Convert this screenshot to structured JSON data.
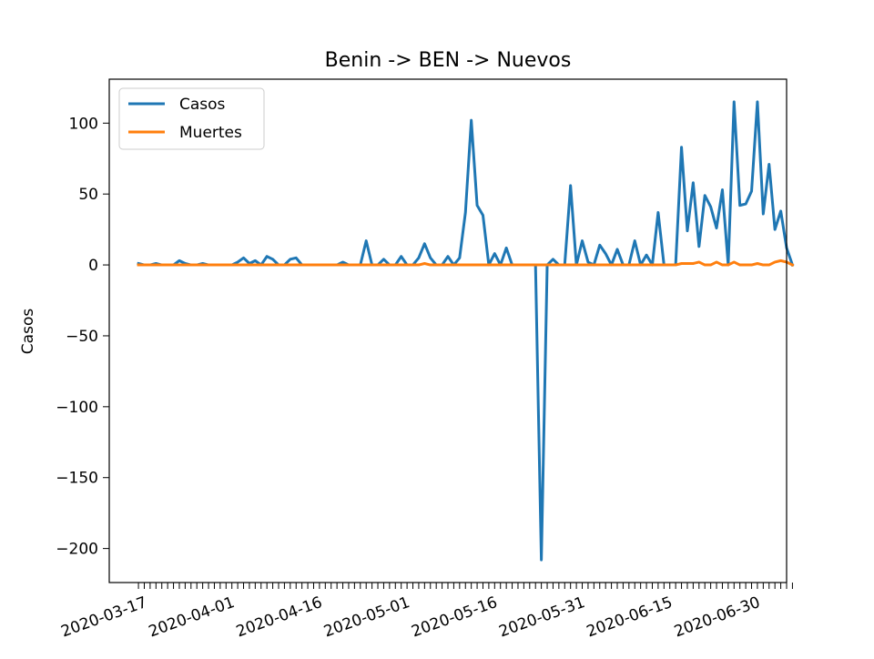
{
  "chart_data": {
    "type": "line",
    "title": "Benin -> BEN -> Nuevos",
    "xlabel": "",
    "ylabel": "Casos",
    "x_start": "2020-03-16",
    "x_end": "2020-06-30",
    "xlim": [
      "2020-03-11",
      "2020-07-05"
    ],
    "ylim": [
      -224,
      131
    ],
    "x_tick_labels": [
      "2020-03-17",
      "2020-04-01",
      "2020-04-16",
      "2020-05-01",
      "2020-05-16",
      "2020-05-31",
      "2020-06-15",
      "2020-06-30"
    ],
    "y_ticks": [
      100,
      50,
      0,
      -50,
      -100,
      -150,
      -200
    ],
    "y_tick_labels": [
      "100",
      "50",
      "0",
      "−50",
      "−100",
      "−150",
      "−200"
    ],
    "legend_position": "top-left",
    "grid": false,
    "series": [
      {
        "name": "Casos",
        "color": "#1f77b4",
        "values": [
          1,
          0,
          0,
          1,
          0,
          0,
          0,
          3,
          1,
          0,
          0,
          1,
          0,
          0,
          0,
          0,
          0,
          2,
          5,
          1,
          3,
          0,
          6,
          4,
          0,
          0,
          4,
          5,
          0,
          0,
          0,
          0,
          0,
          0,
          0,
          2,
          0,
          0,
          0,
          17,
          0,
          0,
          4,
          0,
          0,
          6,
          0,
          0,
          5,
          15,
          5,
          0,
          0,
          6,
          0,
          5,
          37,
          102,
          42,
          35,
          0,
          8,
          0,
          12,
          0,
          0,
          0,
          0,
          0,
          -208,
          0,
          4,
          0,
          0,
          56,
          0,
          17,
          2,
          0,
          14,
          8,
          0,
          11,
          0,
          0,
          17,
          0,
          7,
          0,
          37,
          0,
          0,
          0,
          83,
          24,
          58,
          13,
          49,
          41,
          26,
          53,
          0,
          115,
          42,
          43,
          52,
          115,
          36,
          71,
          25,
          38,
          12,
          0
        ]
      },
      {
        "name": "Muertes",
        "color": "#ff7f0e",
        "values": [
          0,
          0,
          0,
          0,
          0,
          0,
          0,
          0,
          0,
          0,
          0,
          0,
          0,
          0,
          0,
          0,
          0,
          0,
          0,
          0,
          0,
          0,
          0,
          0,
          0,
          0,
          0,
          0,
          0,
          0,
          0,
          0,
          0,
          0,
          0,
          0,
          0,
          0,
          0,
          0,
          0,
          0,
          0,
          0,
          0,
          0,
          0,
          0,
          0,
          1,
          0,
          0,
          0,
          0,
          0,
          0,
          0,
          0,
          0,
          0,
          0,
          0,
          0,
          0,
          0,
          0,
          0,
          0,
          0,
          0,
          0,
          0,
          0,
          0,
          0,
          0,
          0,
          0,
          0,
          0,
          0,
          0,
          0,
          0,
          0,
          0,
          0,
          0,
          0,
          0,
          0,
          0,
          0,
          1,
          1,
          1,
          2,
          0,
          0,
          2,
          0,
          0,
          2,
          0,
          0,
          0,
          1,
          0,
          0,
          2,
          3,
          2,
          0
        ]
      }
    ]
  }
}
